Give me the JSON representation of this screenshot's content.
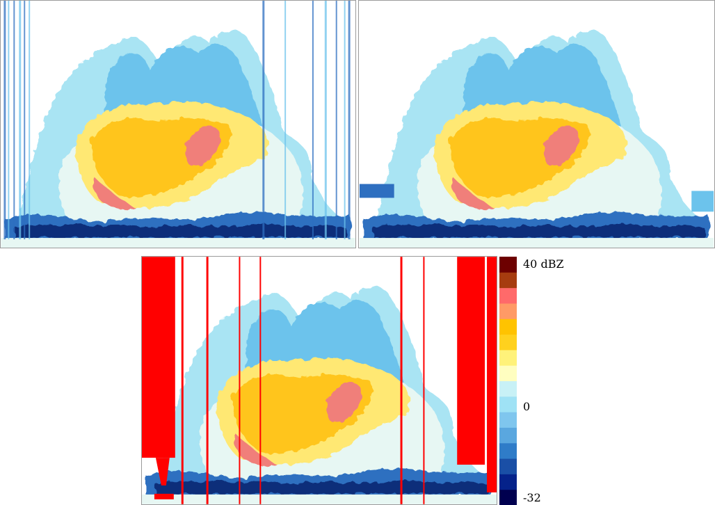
{
  "panels": [
    {
      "id": "top-left",
      "artifacts": "sparse-vertical-streaks"
    },
    {
      "id": "top-right",
      "artifacts": "cleaned"
    },
    {
      "id": "bottom",
      "artifacts": "red-mask"
    }
  ],
  "colorbar": {
    "labels": {
      "max": "40 dBZ",
      "mid": "0",
      "min": "-32"
    },
    "colors": [
      "#00004f",
      "#05228a",
      "#1a4fa6",
      "#2f7cc8",
      "#5aa7df",
      "#7fc6ee",
      "#9fe2f5",
      "#c8f1f6",
      "#fffec0",
      "#fff27a",
      "#ffd11e",
      "#ffc300",
      "#ff9a66",
      "#ff6a6a",
      "#a63c0f",
      "#6d0000"
    ]
  },
  "palette": {
    "deep": "#0b2f7a",
    "dark": "#2e6fc0",
    "mid": "#6cc3ec",
    "light": "#a9e4f3",
    "pale": "#e7f7f3",
    "yellow": "#ffe873",
    "gold": "#ffc51f",
    "pink": "#f07f7a",
    "mask": "#ff0000"
  }
}
